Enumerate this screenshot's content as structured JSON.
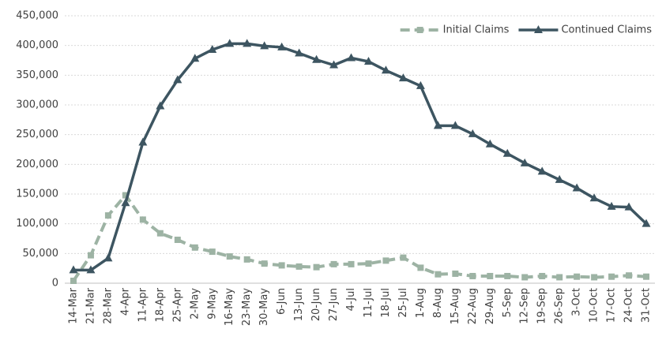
{
  "chart_data": {
    "type": "line",
    "categories": [
      "14-Mar",
      "21-Mar",
      "28-Mar",
      "4-Apr",
      "11-Apr",
      "18-Apr",
      "25-Apr",
      "2-May",
      "9-May",
      "16-May",
      "23-May",
      "30-May",
      "6-Jun",
      "13-Jun",
      "20-Jun",
      "27-Jun",
      "4-Jul",
      "11-Jul",
      "18-Jul",
      "25-Jul",
      "1-Aug",
      "8-Aug",
      "15-Aug",
      "22-Aug",
      "29-Aug",
      "5-Sep",
      "12-Sep",
      "19-Sep",
      "26-Sep",
      "3-Oct",
      "10-Oct",
      "17-Oct",
      "24-Oct",
      "31-Oct"
    ],
    "series": [
      {
        "name": "Initial Claims",
        "color": "#9db3a4",
        "values": [
          4000,
          47000,
          114000,
          148000,
          107000,
          84000,
          73000,
          60000,
          53000,
          45000,
          40000,
          33000,
          30000,
          28000,
          27000,
          32000,
          32000,
          33000,
          38000,
          43000,
          26000,
          15000,
          16000,
          12000,
          12000,
          12000,
          10000,
          12000,
          10000,
          11000,
          10000,
          11000,
          13000,
          11000
        ]
      },
      {
        "name": "Continued Claims",
        "color": "#3d5561",
        "values": [
          22000,
          22000,
          42000,
          135000,
          237000,
          298000,
          342000,
          378000,
          393000,
          403000,
          403000,
          399000,
          397000,
          387000,
          376000,
          367000,
          379000,
          373000,
          358000,
          345000,
          332000,
          265000,
          265000,
          251000,
          234000,
          218000,
          202000,
          188000,
          174000,
          160000,
          143000,
          129000,
          128000,
          100000
        ]
      }
    ],
    "ylim": [
      0,
      450000
    ],
    "yticks": [
      0,
      {
        "value": 50000,
        "label": "50,000"
      },
      {
        "value": 100000,
        "label": "100,000"
      },
      {
        "value": 150000,
        "label": "150,000"
      },
      {
        "value": 200000,
        "label": "200,000"
      },
      {
        "value": 250000,
        "label": "250,000"
      },
      {
        "value": 300000,
        "label": "300,000"
      },
      {
        "value": 350000,
        "label": "350,000"
      },
      {
        "value": 400000,
        "label": "400,000"
      },
      {
        "value": 450000,
        "label": "450,000"
      }
    ],
    "grid": true,
    "legend": "top-right"
  }
}
